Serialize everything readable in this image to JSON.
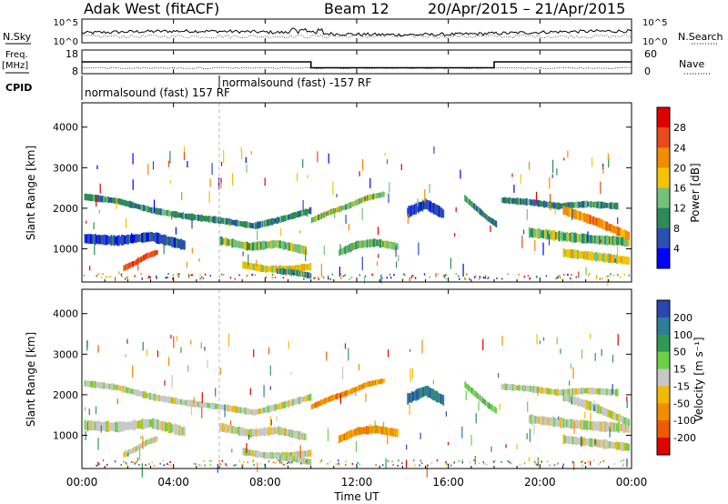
{
  "chart_data": {
    "type": "heatmap",
    "title": "Adak West (fitACF)",
    "beam": "Beam 12",
    "date_range": "20/Apr/2015 – 21/Apr/2015",
    "xlabel": "Time UT",
    "x_ticks": [
      "00:00",
      "04:00",
      "08:00",
      "12:00",
      "16:00",
      "20:00",
      "00:00"
    ],
    "xlim_hours": [
      0,
      24
    ],
    "noise_panel": {
      "left_label": "N.Sky",
      "right_label": "N.Search",
      "left_ticks": [
        "10^5",
        "10^0"
      ],
      "right_ticks": [
        "10^5",
        "10^0"
      ],
      "log_scale": true
    },
    "freq_panel": {
      "left_label": "Freq.",
      "left_unit": "[MHz]",
      "left_ticks": [
        18,
        8
      ],
      "right_label": "Nave",
      "right_ticks": [
        60,
        0
      ],
      "freq_steps": [
        {
          "t0": 0,
          "t1": 10,
          "mhz": 13.0
        },
        {
          "t0": 10,
          "t1": 18,
          "mhz": 10.5
        },
        {
          "t0": 18,
          "t1": 24,
          "mhz": 13.0
        }
      ]
    },
    "cpid": {
      "label": "CPID",
      "segments": [
        {
          "start_hour": 0,
          "text": "normalsound (fast) 157 RF"
        },
        {
          "start_hour": 6,
          "text": "normalsound (fast) -157 RF"
        }
      ]
    },
    "power_panel": {
      "ylabel": "Slant Range [km]",
      "ylim": [
        180,
        4600
      ],
      "y_ticks": [
        1000,
        2000,
        3000,
        4000
      ],
      "colorbar_label": "Power [dB]",
      "colorbar_ticks": [
        4,
        8,
        12,
        16,
        20,
        24,
        28
      ],
      "colorbar_range": [
        0,
        32
      ],
      "colors": [
        "#0000ff",
        "#2a4fb5",
        "#2e8b57",
        "#74c27a",
        "#f5c400",
        "#f28c00",
        "#e84a1c",
        "#e00000"
      ]
    },
    "velocity_panel": {
      "ylabel": "Slant Range [km]",
      "ylim": [
        180,
        4600
      ],
      "y_ticks": [
        1000,
        2000,
        3000,
        4000
      ],
      "colorbar_label": "Velocity [m s⁻¹]",
      "colorbar_ticks": [
        200,
        100,
        50,
        15,
        -15,
        -50,
        -100,
        -200
      ],
      "colors": [
        "#2846b4",
        "#2e7d9a",
        "#2f9a55",
        "#6fd048",
        "#c8c8c8",
        "#f5b800",
        "#f28c00",
        "#f05a00",
        "#e00000"
      ]
    },
    "echo_bands": [
      {
        "t": [
          0.1,
          1.5,
          3.0,
          4.5,
          6.0,
          7.5,
          8.5,
          10.0
        ],
        "r": [
          2280,
          2180,
          1950,
          1800,
          1700,
          1560,
          1700,
          1950
        ],
        "w": 150,
        "p": 2,
        "v": 4
      },
      {
        "t": [
          0.1,
          1.5,
          3.0,
          4.5
        ],
        "r": [
          1250,
          1200,
          1300,
          1080
        ],
        "w": 230,
        "p": 1,
        "v": 4
      },
      {
        "t": [
          1.8,
          2.3,
          2.8,
          3.3
        ],
        "r": [
          520,
          650,
          820,
          920
        ],
        "w": 130,
        "p": 6,
        "v": 4
      },
      {
        "t": [
          6.0,
          7.3,
          8.5,
          9.8
        ],
        "r": [
          1200,
          1050,
          1120,
          950
        ],
        "w": 190,
        "p": 3,
        "v": 4
      },
      {
        "t": [
          7.0,
          8.0,
          9.0,
          10.0
        ],
        "r": [
          600,
          500,
          500,
          560
        ],
        "w": 160,
        "p": 4,
        "v": 4
      },
      {
        "t": [
          8.5,
          9.2,
          10.0
        ],
        "r": [
          450,
          420,
          330
        ],
        "w": 140,
        "p": 2,
        "v": 4
      },
      {
        "t": [
          10.0,
          10.8,
          11.6,
          12.4,
          13.2
        ],
        "r": [
          1700,
          1900,
          2050,
          2250,
          2350
        ],
        "w": 130,
        "p": 3,
        "v": 6
      },
      {
        "t": [
          11.2,
          12.0,
          12.8,
          13.8
        ],
        "r": [
          900,
          1100,
          1150,
          1050
        ],
        "w": 180,
        "p": 3,
        "v": 6
      },
      {
        "t": [
          14.2,
          15.0,
          15.8
        ],
        "r": [
          1900,
          2100,
          1850
        ],
        "w": 250,
        "p": 1,
        "v": 1
      },
      {
        "t": [
          16.7,
          17.2,
          17.7,
          18.1
        ],
        "r": [
          2250,
          2000,
          1750,
          1600
        ],
        "w": 140,
        "p": 2,
        "v": 3
      },
      {
        "t": [
          18.3,
          19.5,
          20.8,
          22.0,
          23.4
        ],
        "r": [
          2200,
          2150,
          2050,
          2100,
          2050
        ],
        "w": 150,
        "p": 2,
        "v": 4
      },
      {
        "t": [
          19.5,
          21.0,
          22.5,
          23.9
        ],
        "r": [
          1400,
          1300,
          1220,
          1180
        ],
        "w": 220,
        "p": 3,
        "v": 4
      },
      {
        "t": [
          21.0,
          22.5,
          23.9
        ],
        "r": [
          1950,
          1650,
          1300
        ],
        "w": 200,
        "p": 5,
        "v": 4
      },
      {
        "t": [
          21.0,
          22.5,
          23.9
        ],
        "r": [
          900,
          800,
          700
        ],
        "w": 200,
        "p": 4,
        "v": 4
      }
    ]
  }
}
